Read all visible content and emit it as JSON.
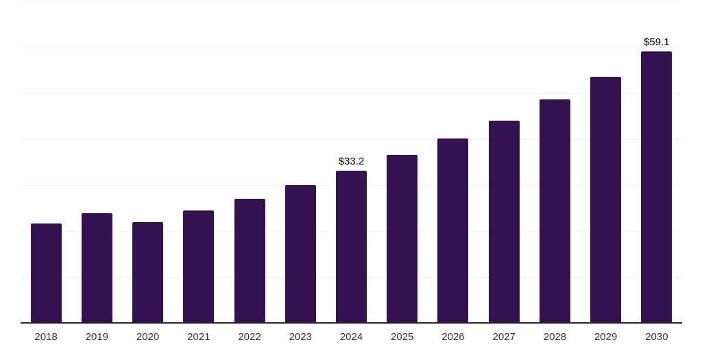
{
  "chart_data": {
    "type": "bar",
    "title": "",
    "xlabel": "",
    "ylabel": "",
    "categories": [
      "2018",
      "2019",
      "2020",
      "2021",
      "2022",
      "2023",
      "2024",
      "2025",
      "2026",
      "2027",
      "2028",
      "2029",
      "2030"
    ],
    "values": [
      21.7,
      23.9,
      21.9,
      24.5,
      27.0,
      30.0,
      33.2,
      36.6,
      40.1,
      44.1,
      48.7,
      53.6,
      59.1
    ],
    "data_labels": [
      "",
      "",
      "",
      "",
      "",
      "",
      "$33.2",
      "",
      "",
      "",
      "",
      "",
      "$59.1"
    ],
    "ylim": [
      0,
      70
    ],
    "grid_step": 10,
    "grid": "horizontal-only",
    "legend": "none",
    "y_tick_labels_visible": false,
    "colors": {
      "bar": "#341150",
      "x_axis_line": "#262626",
      "gridline": "#f2f2f2",
      "tick_label": "#333333",
      "data_label": "#000000",
      "background": "#ffffff"
    }
  }
}
